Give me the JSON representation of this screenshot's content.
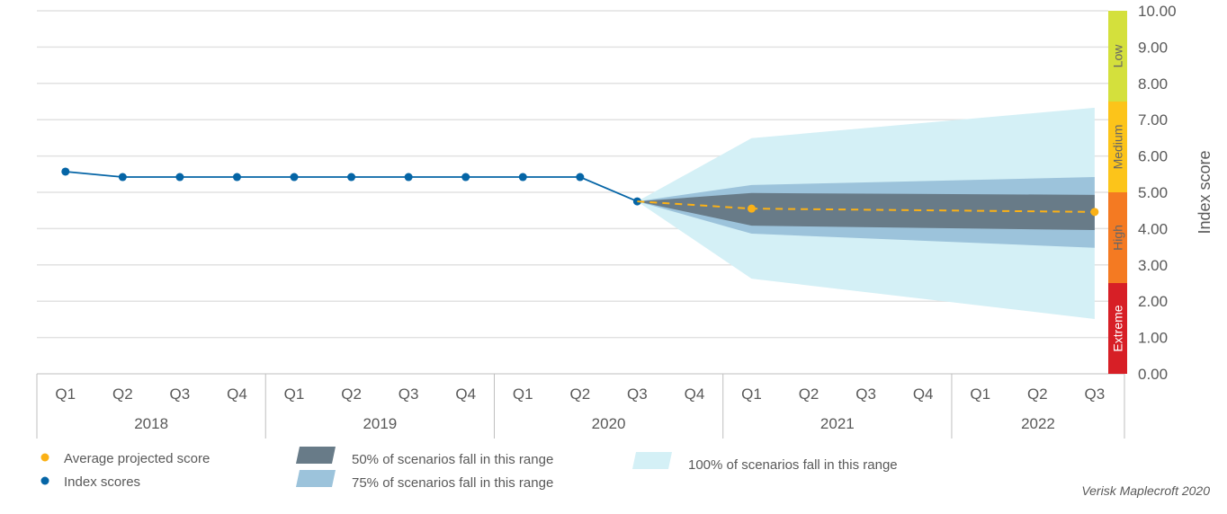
{
  "chart_data": {
    "type": "line",
    "title": "",
    "ylabel": "Index score",
    "ylim": [
      0,
      10
    ],
    "yticks": [
      "0.00",
      "1.00",
      "2.00",
      "3.00",
      "4.00",
      "5.00",
      "6.00",
      "7.00",
      "8.00",
      "9.00",
      "10.00"
    ],
    "grid": true,
    "years": [
      {
        "label": "2018",
        "quarters": [
          "Q1",
          "Q2",
          "Q3",
          "Q4"
        ]
      },
      {
        "label": "2019",
        "quarters": [
          "Q1",
          "Q2",
          "Q3",
          "Q4"
        ]
      },
      {
        "label": "2020",
        "quarters": [
          "Q1",
          "Q2",
          "Q3",
          "Q4"
        ]
      },
      {
        "label": "2021",
        "quarters": [
          "Q1",
          "Q2",
          "Q3",
          "Q4"
        ]
      },
      {
        "label": "2022",
        "quarters": [
          "Q1",
          "Q2",
          "Q3"
        ]
      }
    ],
    "series": [
      {
        "name": "Index scores",
        "color": "#0565a6",
        "points": [
          [
            "Q1 2018",
            5.57
          ],
          [
            "Q2 2018",
            5.42
          ],
          [
            "Q3 2018",
            5.42
          ],
          [
            "Q4 2018",
            5.42
          ],
          [
            "Q1 2019",
            5.42
          ],
          [
            "Q2 2019",
            5.42
          ],
          [
            "Q3 2019",
            5.42
          ],
          [
            "Q4 2019",
            5.42
          ],
          [
            "Q1 2020",
            5.42
          ],
          [
            "Q2 2020",
            5.42
          ],
          [
            "Q3 2020",
            4.75
          ]
        ]
      },
      {
        "name": "Average projected score",
        "color": "#fbb116",
        "dashed": true,
        "points": [
          [
            "Q3 2020",
            4.75
          ],
          [
            "Q1 2021",
            4.55
          ],
          [
            "Q3 2022",
            4.46
          ]
        ]
      }
    ],
    "ranges": [
      {
        "name": "100% of scenarios fall in this range",
        "color": "#d4f0f6",
        "points": [
          [
            "Q3 2020",
            4.75,
            4.75
          ],
          [
            "Q1 2021",
            2.62,
            6.49
          ],
          [
            "Q3 2022",
            1.51,
            7.33
          ]
        ]
      },
      {
        "name": "75% of scenarios fall in this range",
        "color": "#9cc3db",
        "points": [
          [
            "Q3 2020",
            4.75,
            4.75
          ],
          [
            "Q1 2021",
            3.86,
            5.2
          ],
          [
            "Q3 2022",
            3.47,
            5.42
          ]
        ]
      },
      {
        "name": "50% of scenarios fall in this range",
        "color": "#687b88",
        "points": [
          [
            "Q3 2020",
            4.75,
            4.75
          ],
          [
            "Q1 2021",
            4.08,
            4.98
          ],
          [
            "Q3 2022",
            3.96,
            4.93
          ]
        ]
      }
    ],
    "risk_bands": [
      {
        "label": "Extreme",
        "from": 0,
        "to": 2.5,
        "color": "#d71f26",
        "text_color": "#ffffff"
      },
      {
        "label": "High",
        "from": 2.5,
        "to": 5,
        "color": "#f47a22",
        "text_color": "#666666"
      },
      {
        "label": "Medium",
        "from": 5,
        "to": 7.5,
        "color": "#fcc41a",
        "text_color": "#666666"
      },
      {
        "label": "Low",
        "from": 7.5,
        "to": 10,
        "color": "#d4e03c",
        "text_color": "#666666"
      }
    ],
    "legend": {
      "placement": "bottom",
      "items": [
        "Average projected score",
        "Index scores",
        "50% of scenarios fall in this range",
        "75% of scenarios fall in this range",
        "100% of scenarios fall in this range"
      ]
    },
    "source": "Verisk Maplecroft 2020"
  }
}
